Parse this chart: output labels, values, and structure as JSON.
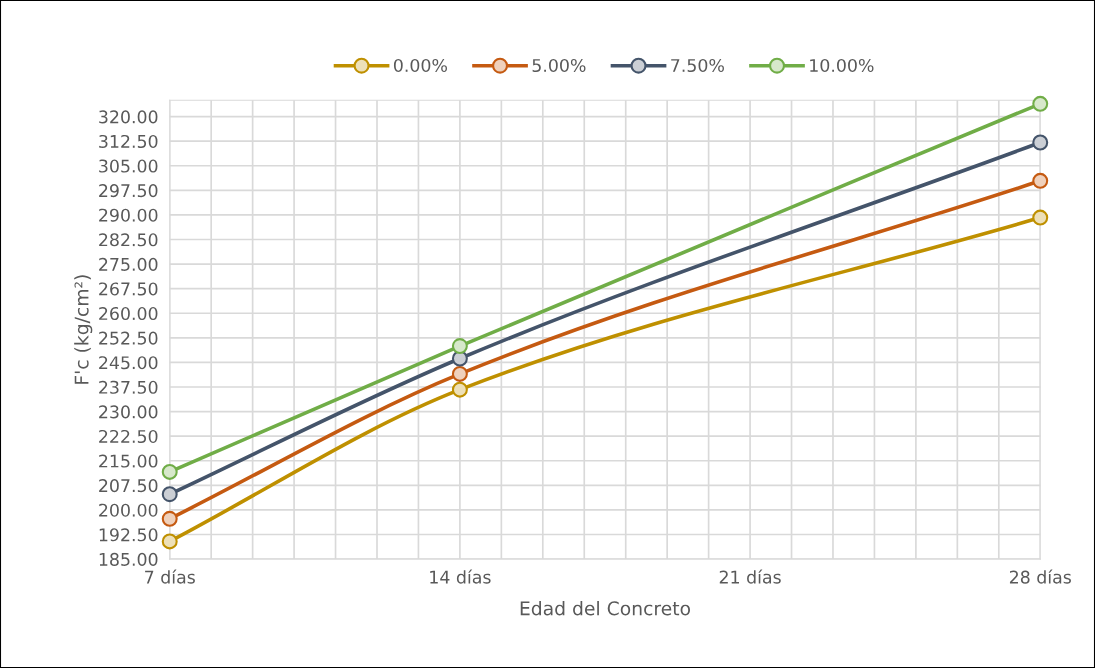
{
  "chart_data": {
    "type": "line",
    "xlabel": "Edad del Concreto",
    "ylabel": "F'c (kg/cm²)",
    "x": [
      7,
      14,
      28
    ],
    "xlim": [
      7,
      28
    ],
    "xticks": [
      {
        "value": 7,
        "label": "7 días"
      },
      {
        "value": 8,
        "label": null
      },
      {
        "value": 9,
        "label": null
      },
      {
        "value": 10,
        "label": null
      },
      {
        "value": 11,
        "label": null
      },
      {
        "value": 12,
        "label": null
      },
      {
        "value": 13,
        "label": null
      },
      {
        "value": 14,
        "label": "14 días"
      },
      {
        "value": 15,
        "label": null
      },
      {
        "value": 16,
        "label": null
      },
      {
        "value": 17,
        "label": null
      },
      {
        "value": 18,
        "label": null
      },
      {
        "value": 19,
        "label": null
      },
      {
        "value": 20,
        "label": null
      },
      {
        "value": 21,
        "label": "21 días"
      },
      {
        "value": 22,
        "label": null
      },
      {
        "value": 23,
        "label": null
      },
      {
        "value": 24,
        "label": null
      },
      {
        "value": 25,
        "label": null
      },
      {
        "value": 26,
        "label": null
      },
      {
        "value": 27,
        "label": null
      },
      {
        "value": 28,
        "label": "28 días"
      }
    ],
    "ylim": [
      185,
      325
    ],
    "yticks": [
      {
        "value": 185,
        "label": "185.00"
      },
      {
        "value": 192.5,
        "label": "192.50"
      },
      {
        "value": 200,
        "label": "200.00"
      },
      {
        "value": 207.5,
        "label": "207.50"
      },
      {
        "value": 215,
        "label": "215.00"
      },
      {
        "value": 222.5,
        "label": "222.50"
      },
      {
        "value": 230,
        "label": "230.00"
      },
      {
        "value": 237.5,
        "label": "237.50"
      },
      {
        "value": 245,
        "label": "245.00"
      },
      {
        "value": 252.5,
        "label": "252.50"
      },
      {
        "value": 260,
        "label": "260.00"
      },
      {
        "value": 267.5,
        "label": "267.50"
      },
      {
        "value": 275,
        "label": "275.00"
      },
      {
        "value": 282.5,
        "label": "282.50"
      },
      {
        "value": 290,
        "label": "290.00"
      },
      {
        "value": 297.5,
        "label": "297.50"
      },
      {
        "value": 305,
        "label": "305.00"
      },
      {
        "value": 312.5,
        "label": "312.50"
      },
      {
        "value": 320,
        "label": "320.00"
      }
    ],
    "grid": true,
    "legend": "top",
    "marker": "circle",
    "line_style": "solid",
    "series": [
      {
        "name": "0.00%",
        "color": "#bf9000",
        "values": [
          190.4,
          236.7,
          289.2
        ]
      },
      {
        "name": "5.00%",
        "color": "#c55a11",
        "values": [
          197.3,
          241.5,
          300.4
        ]
      },
      {
        "name": "7.50%",
        "color": "#44546a",
        "values": [
          204.8,
          246.2,
          312.1
        ]
      },
      {
        "name": "10.00%",
        "color": "#70ad47",
        "values": [
          211.6,
          250.0,
          323.9
        ]
      }
    ]
  }
}
